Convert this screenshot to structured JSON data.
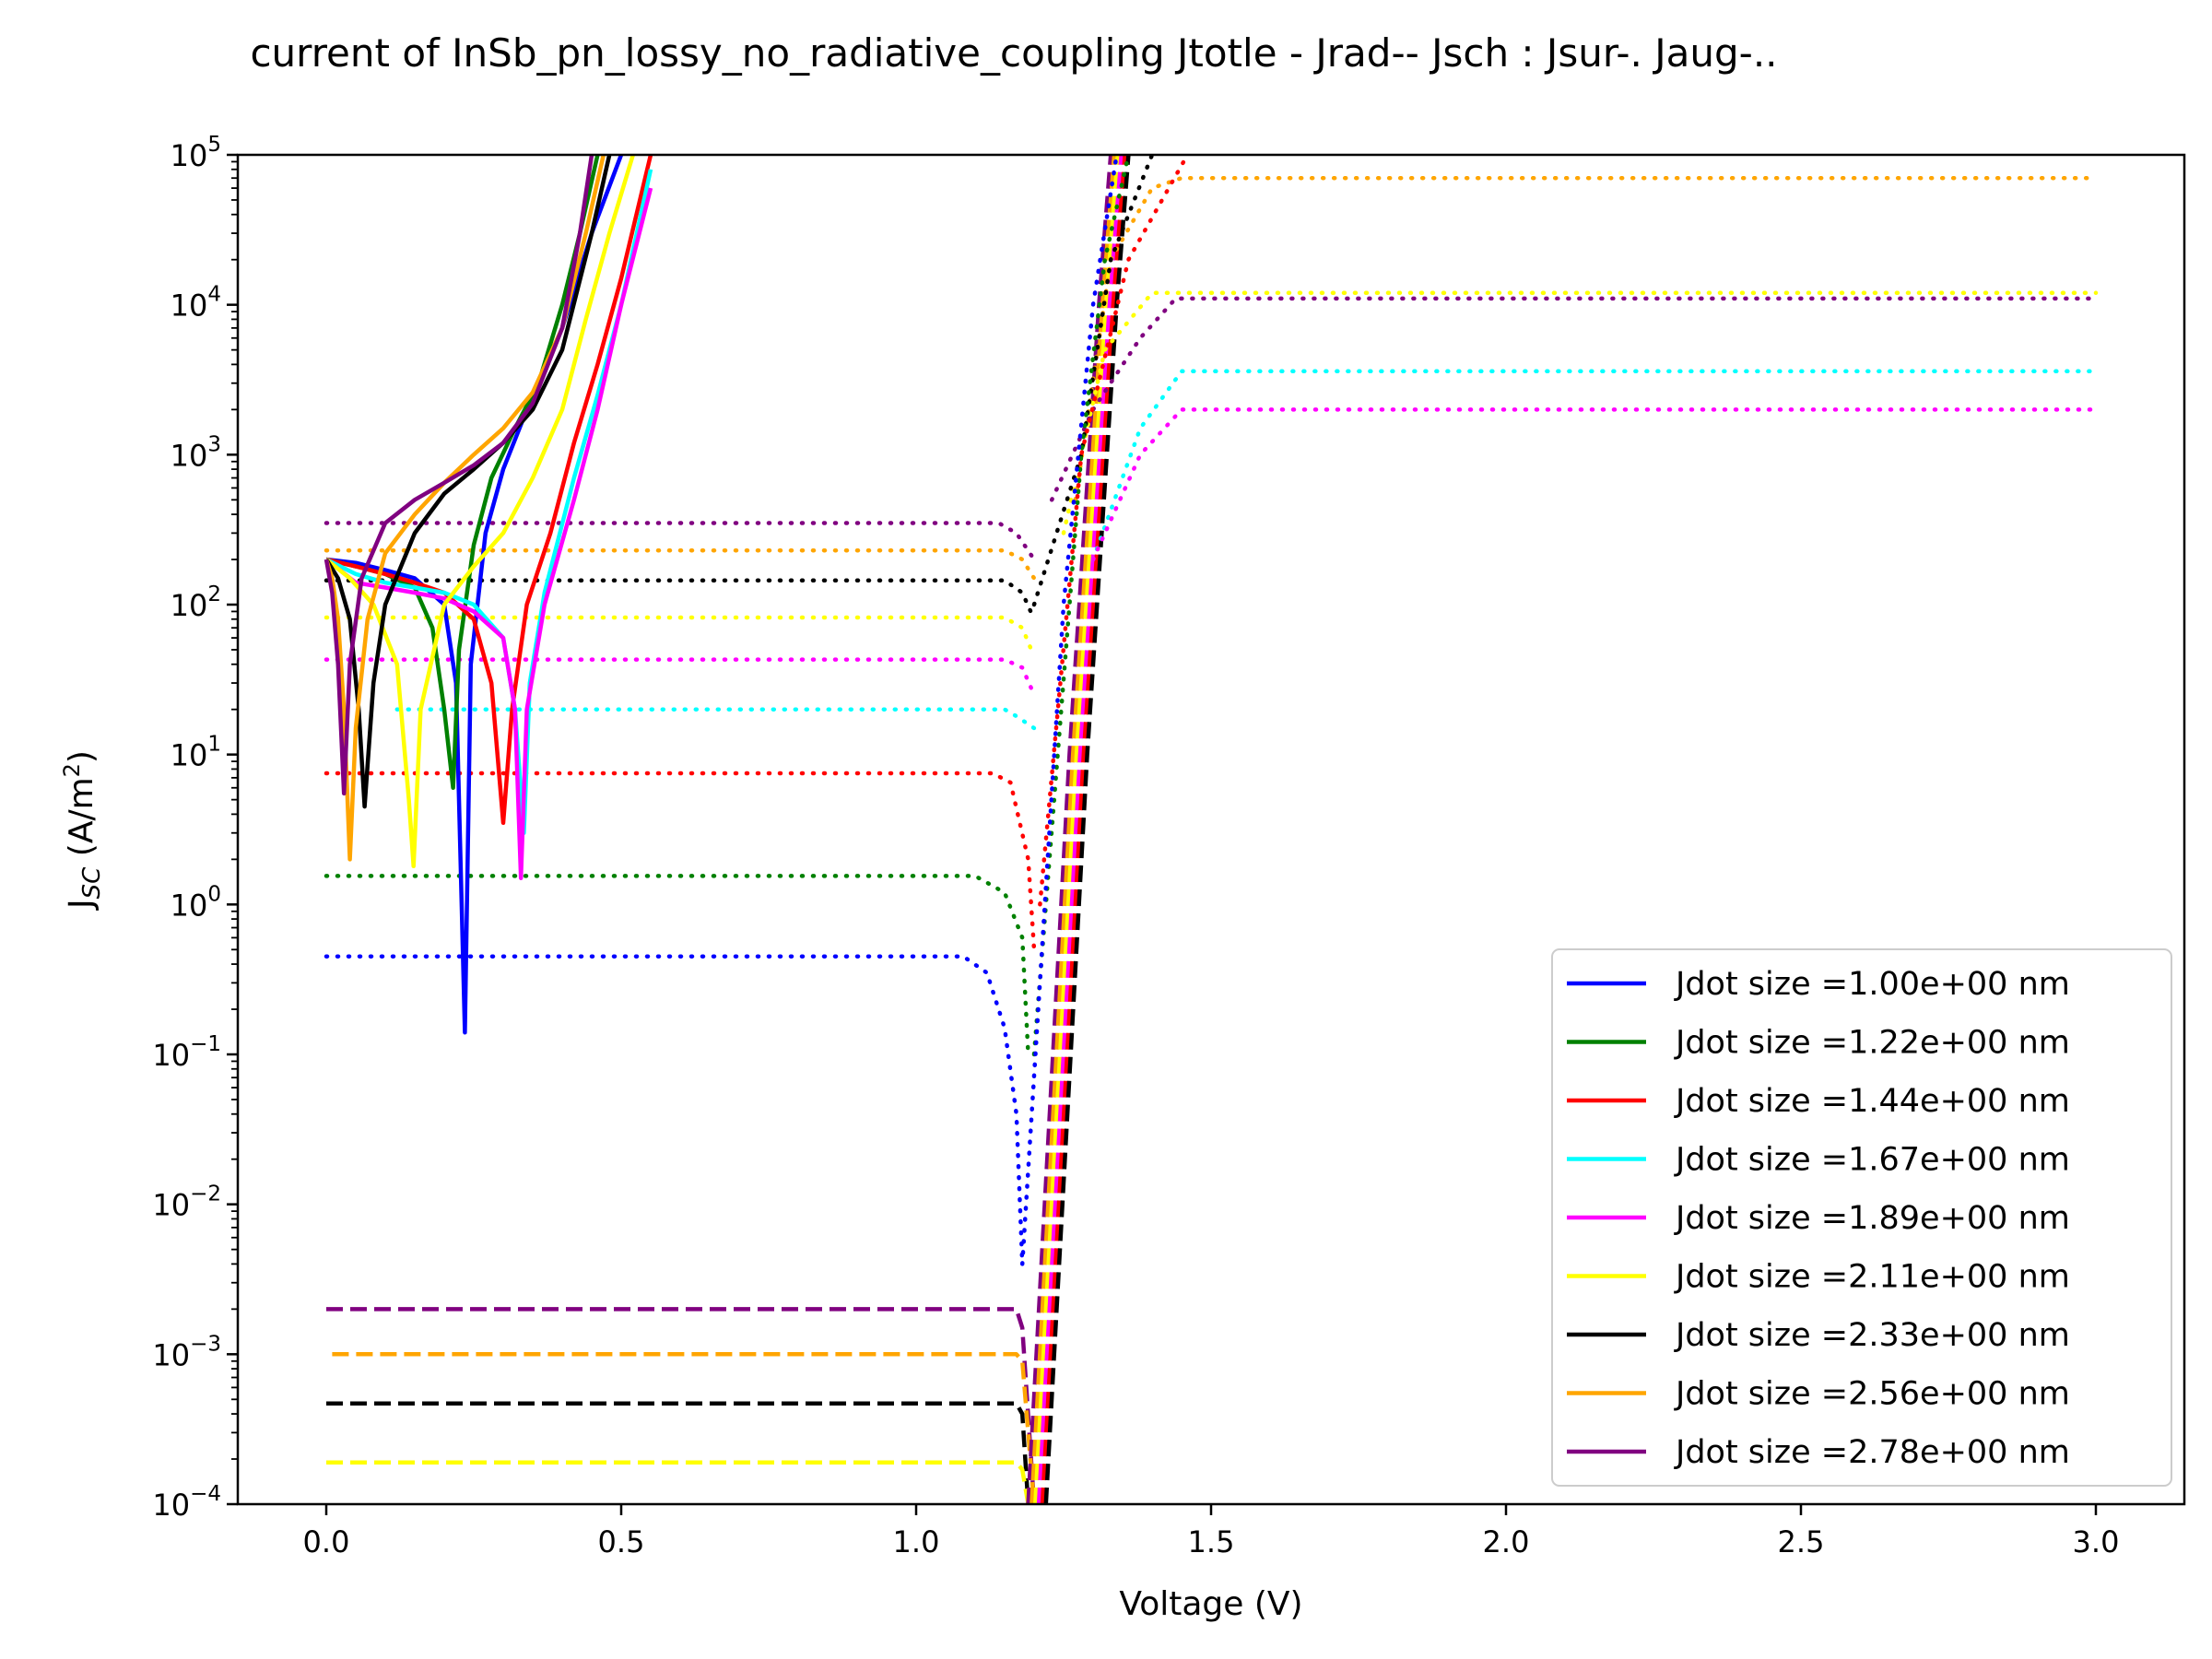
{
  "chart_data": {
    "type": "line",
    "title": "current of InSb_pn_lossy_no_radiative_coupling Jtotle - Jrad-- Jsch : Jsur-. Jaug-..",
    "xlabel": "Voltage (V)",
    "ylabel_main": "J",
    "ylabel_sub": "SC",
    "ylabel_unit": " (A/m",
    "ylabel_sup": "2",
    "ylabel_close": ")",
    "xlim": [
      -0.15,
      3.15
    ],
    "ylim": [
      0.0001,
      100000
    ],
    "yscale": "log",
    "grid": false,
    "legend_placement": "lower-right",
    "x_ticks": [
      {
        "value": 0.0,
        "label": "0.0"
      },
      {
        "value": 0.5,
        "label": "0.5"
      },
      {
        "value": 1.0,
        "label": "1.0"
      },
      {
        "value": 1.5,
        "label": "1.5"
      },
      {
        "value": 2.0,
        "label": "2.0"
      },
      {
        "value": 2.5,
        "label": "2.5"
      },
      {
        "value": 3.0,
        "label": "3.0"
      }
    ],
    "y_ticks": [
      {
        "value": 100000,
        "base": "10",
        "exp": "5"
      },
      {
        "value": 10000,
        "base": "10",
        "exp": "4"
      },
      {
        "value": 1000,
        "base": "10",
        "exp": "3"
      },
      {
        "value": 100,
        "base": "10",
        "exp": "2"
      },
      {
        "value": 10,
        "base": "10",
        "exp": "1"
      },
      {
        "value": 1,
        "base": "10",
        "exp": "0"
      },
      {
        "value": 0.1,
        "base": "10",
        "exp": "−1"
      },
      {
        "value": 0.01,
        "base": "10",
        "exp": "−2"
      },
      {
        "value": 0.001,
        "base": "10",
        "exp": "−3"
      },
      {
        "value": 0.0001,
        "base": "10",
        "exp": "−4"
      }
    ],
    "series": [
      {
        "name": "Jdot size =1.00e+00 nm",
        "color": "#0000ff",
        "total": [
          [
            0,
            200
          ],
          [
            0.05,
            190
          ],
          [
            0.1,
            170
          ],
          [
            0.15,
            150
          ],
          [
            0.2,
            100
          ],
          [
            0.22,
            30
          ],
          [
            0.235,
            0.14
          ],
          [
            0.245,
            40
          ],
          [
            0.27,
            300
          ],
          [
            0.3,
            800
          ],
          [
            0.35,
            2500
          ],
          [
            0.4,
            7000
          ],
          [
            0.45,
            30000
          ],
          [
            0.5,
            100000
          ]
        ],
        "aug": [
          [
            0,
            0.45
          ],
          [
            1.08,
            0.45
          ],
          [
            1.12,
            0.35
          ],
          [
            1.15,
            0.15
          ],
          [
            1.17,
            0.04
          ],
          [
            1.18,
            0.004
          ]
        ]
      },
      {
        "name": "Jdot size =1.22e+00 nm",
        "color": "#008000",
        "total": [
          [
            0,
            200
          ],
          [
            0.05,
            180
          ],
          [
            0.1,
            160
          ],
          [
            0.15,
            130
          ],
          [
            0.18,
            70
          ],
          [
            0.2,
            20
          ],
          [
            0.215,
            6
          ],
          [
            0.225,
            50
          ],
          [
            0.25,
            250
          ],
          [
            0.28,
            700
          ],
          [
            0.32,
            1500
          ],
          [
            0.36,
            3000
          ],
          [
            0.4,
            10000
          ],
          [
            0.43,
            30000
          ],
          [
            0.46,
            100000
          ]
        ],
        "aug": [
          [
            0,
            1.55
          ],
          [
            1.1,
            1.55
          ],
          [
            1.15,
            1.2
          ],
          [
            1.18,
            0.6
          ],
          [
            1.19,
            0.1
          ]
        ]
      },
      {
        "name": "Jdot size =1.44e+00 nm",
        "color": "#ff0000",
        "total": [
          [
            0,
            200
          ],
          [
            0.05,
            180
          ],
          [
            0.1,
            160
          ],
          [
            0.15,
            140
          ],
          [
            0.2,
            120
          ],
          [
            0.25,
            80
          ],
          [
            0.28,
            30
          ],
          [
            0.3,
            3.5
          ],
          [
            0.315,
            20
          ],
          [
            0.34,
            100
          ],
          [
            0.38,
            300
          ],
          [
            0.42,
            1200
          ],
          [
            0.46,
            4000
          ],
          [
            0.5,
            15000
          ],
          [
            0.55,
            100000
          ]
        ],
        "aug": [
          [
            0,
            7.5
          ],
          [
            1.13,
            7.5
          ],
          [
            1.16,
            6.5
          ],
          [
            1.19,
            2
          ],
          [
            1.2,
            0.5
          ]
        ]
      },
      {
        "name": "Jdot size =1.67e+00 nm",
        "color": "#00ffff",
        "total": [
          [
            0,
            200
          ],
          [
            0.05,
            160
          ],
          [
            0.1,
            140
          ],
          [
            0.15,
            130
          ],
          [
            0.2,
            120
          ],
          [
            0.25,
            100
          ],
          [
            0.3,
            60
          ],
          [
            0.32,
            20
          ],
          [
            0.335,
            3
          ],
          [
            0.345,
            30
          ],
          [
            0.37,
            120
          ],
          [
            0.42,
            700
          ],
          [
            0.46,
            2500
          ],
          [
            0.5,
            10000
          ],
          [
            0.55,
            80000
          ]
        ],
        "aug": [
          [
            0.12,
            20
          ],
          [
            1.15,
            20
          ],
          [
            1.17,
            18
          ],
          [
            1.2,
            15
          ]
        ]
      },
      {
        "name": "Jdot size =1.89e+00 nm",
        "color": "#ff00ff",
        "total": [
          [
            0,
            200
          ],
          [
            0.05,
            140
          ],
          [
            0.1,
            130
          ],
          [
            0.15,
            120
          ],
          [
            0.2,
            110
          ],
          [
            0.25,
            90
          ],
          [
            0.3,
            60
          ],
          [
            0.32,
            20
          ],
          [
            0.33,
            1.5
          ],
          [
            0.34,
            20
          ],
          [
            0.37,
            100
          ],
          [
            0.42,
            500
          ],
          [
            0.46,
            2000
          ],
          [
            0.5,
            10000
          ],
          [
            0.55,
            60000
          ]
        ],
        "aug": [
          [
            0,
            43
          ],
          [
            1.15,
            43
          ],
          [
            1.18,
            38
          ],
          [
            1.2,
            25
          ]
        ]
      },
      {
        "name": "Jdot size =2.11e+00 nm",
        "color": "#ffff00",
        "total": [
          [
            0,
            200
          ],
          [
            0.04,
            150
          ],
          [
            0.08,
            100
          ],
          [
            0.12,
            40
          ],
          [
            0.14,
            5
          ],
          [
            0.148,
            1.8
          ],
          [
            0.16,
            20
          ],
          [
            0.2,
            100
          ],
          [
            0.25,
            180
          ],
          [
            0.3,
            300
          ],
          [
            0.35,
            700
          ],
          [
            0.4,
            2000
          ],
          [
            0.44,
            8000
          ],
          [
            0.48,
            30000
          ],
          [
            0.52,
            100000
          ]
        ],
        "aug": [
          [
            0,
            82
          ],
          [
            1.15,
            82
          ],
          [
            1.18,
            70
          ],
          [
            1.2,
            45
          ]
        ]
      },
      {
        "name": "Jdot size =2.33e+00 nm",
        "color": "#000000",
        "total": [
          [
            0,
            200
          ],
          [
            0.02,
            150
          ],
          [
            0.04,
            80
          ],
          [
            0.055,
            20
          ],
          [
            0.065,
            4.5
          ],
          [
            0.08,
            30
          ],
          [
            0.1,
            100
          ],
          [
            0.15,
            300
          ],
          [
            0.2,
            550
          ],
          [
            0.25,
            800
          ],
          [
            0.3,
            1200
          ],
          [
            0.35,
            2000
          ],
          [
            0.4,
            5000
          ],
          [
            0.45,
            30000
          ],
          [
            0.48,
            100000
          ]
        ],
        "aug": [
          [
            0,
            145
          ],
          [
            1.15,
            145
          ],
          [
            1.18,
            120
          ],
          [
            1.2,
            80
          ]
        ]
      },
      {
        "name": "Jdot size =2.56e+00 nm",
        "color": "#ffa500",
        "total": [
          [
            0,
            200
          ],
          [
            0.01,
            150
          ],
          [
            0.02,
            80
          ],
          [
            0.03,
            20
          ],
          [
            0.04,
            2
          ],
          [
            0.05,
            15
          ],
          [
            0.07,
            80
          ],
          [
            0.1,
            220
          ],
          [
            0.15,
            400
          ],
          [
            0.2,
            650
          ],
          [
            0.25,
            1000
          ],
          [
            0.3,
            1500
          ],
          [
            0.35,
            2600
          ],
          [
            0.4,
            7000
          ],
          [
            0.44,
            30000
          ],
          [
            0.47,
            100000
          ]
        ],
        "aug": [
          [
            0,
            230
          ],
          [
            1.15,
            230
          ],
          [
            1.18,
            200
          ],
          [
            1.2,
            150
          ]
        ]
      },
      {
        "name": "Jdot size =2.78e+00 nm",
        "color": "#800080",
        "total": [
          [
            0,
            200
          ],
          [
            0.01,
            120
          ],
          [
            0.02,
            40
          ],
          [
            0.03,
            5.5
          ],
          [
            0.04,
            40
          ],
          [
            0.06,
            150
          ],
          [
            0.1,
            350
          ],
          [
            0.15,
            500
          ],
          [
            0.2,
            650
          ],
          [
            0.25,
            850
          ],
          [
            0.3,
            1200
          ],
          [
            0.35,
            2200
          ],
          [
            0.4,
            7000
          ],
          [
            0.43,
            30000
          ],
          [
            0.45,
            100000
          ]
        ],
        "aug": [
          [
            0,
            350
          ],
          [
            1.14,
            350
          ],
          [
            1.17,
            300
          ],
          [
            1.2,
            200
          ]
        ]
      }
    ],
    "dashed_rise": [
      {
        "color": "#800080",
        "points": [
          [
            0,
            0.002
          ],
          [
            1.17,
            0.002
          ],
          [
            1.18,
            0.0015
          ],
          [
            1.2,
            0.0001
          ]
        ]
      },
      {
        "color": "#ffa500",
        "points": [
          [
            0.01,
            0.001
          ],
          [
            1.17,
            0.001
          ],
          [
            1.18,
            0.0009
          ],
          [
            1.2,
            0.0001
          ]
        ]
      },
      {
        "color": "#000000",
        "points": [
          [
            0,
            0.00047
          ],
          [
            1.17,
            0.00047
          ],
          [
            1.18,
            0.0004
          ],
          [
            1.19,
            0.0001
          ]
        ]
      },
      {
        "color": "#ffff00",
        "points": [
          [
            0,
            0.00019
          ],
          [
            1.17,
            0.00019
          ],
          [
            1.18,
            0.00017
          ],
          [
            1.19,
            0.0001
          ]
        ]
      }
    ],
    "dotted_plateaus": [
      {
        "color": "#ffa500",
        "points": [
          [
            1.27,
            500
          ],
          [
            1.33,
            20000
          ],
          [
            1.4,
            60000
          ],
          [
            1.45,
            70000
          ],
          [
            3.0,
            70000
          ]
        ]
      },
      {
        "color": "#ffff00",
        "points": [
          [
            1.25,
            300
          ],
          [
            1.32,
            5000
          ],
          [
            1.4,
            12000
          ],
          [
            1.45,
            12000
          ],
          [
            3.0,
            12000
          ]
        ]
      },
      {
        "color": "#800080",
        "points": [
          [
            1.23,
            500
          ],
          [
            1.3,
            2000
          ],
          [
            1.38,
            6000
          ],
          [
            1.44,
            11000
          ],
          [
            3.0,
            11000
          ]
        ]
      },
      {
        "color": "#00ffff",
        "points": [
          [
            1.3,
            200
          ],
          [
            1.38,
            1500
          ],
          [
            1.45,
            3600
          ],
          [
            3.0,
            3600
          ]
        ]
      },
      {
        "color": "#ff00ff",
        "points": [
          [
            1.3,
            200
          ],
          [
            1.38,
            1000
          ],
          [
            1.45,
            2000
          ],
          [
            3.0,
            2000
          ]
        ]
      },
      {
        "color": "#000000",
        "points": [
          [
            1.2,
            100
          ],
          [
            1.28,
            1000
          ],
          [
            1.33,
            20000
          ],
          [
            1.4,
            100000
          ]
        ]
      },
      {
        "color": "#ff0000",
        "points": [
          [
            1.21,
            1
          ],
          [
            1.28,
            1000
          ],
          [
            1.36,
            20000
          ],
          [
            1.46,
            100000
          ]
        ]
      },
      {
        "color": "#008000",
        "points": [
          [
            1.2,
            0.1
          ],
          [
            1.28,
            1000
          ],
          [
            1.32,
            20000
          ],
          [
            1.36,
            100000
          ]
        ]
      },
      {
        "color": "#0000ff",
        "points": [
          [
            1.18,
            0.004
          ],
          [
            1.25,
            100
          ],
          [
            1.3,
            10000
          ],
          [
            1.34,
            100000
          ]
        ]
      }
    ],
    "dashed_steep": [
      {
        "color": "#800080",
        "offset": 0.0
      },
      {
        "color": "#ffa500",
        "offset": 0.006
      },
      {
        "color": "#ffff00",
        "offset": 0.012
      },
      {
        "color": "#ff00ff",
        "offset": 0.018
      },
      {
        "color": "#ff0000",
        "offset": 0.024
      },
      {
        "color": "#000000",
        "offset": 0.03
      }
    ]
  }
}
